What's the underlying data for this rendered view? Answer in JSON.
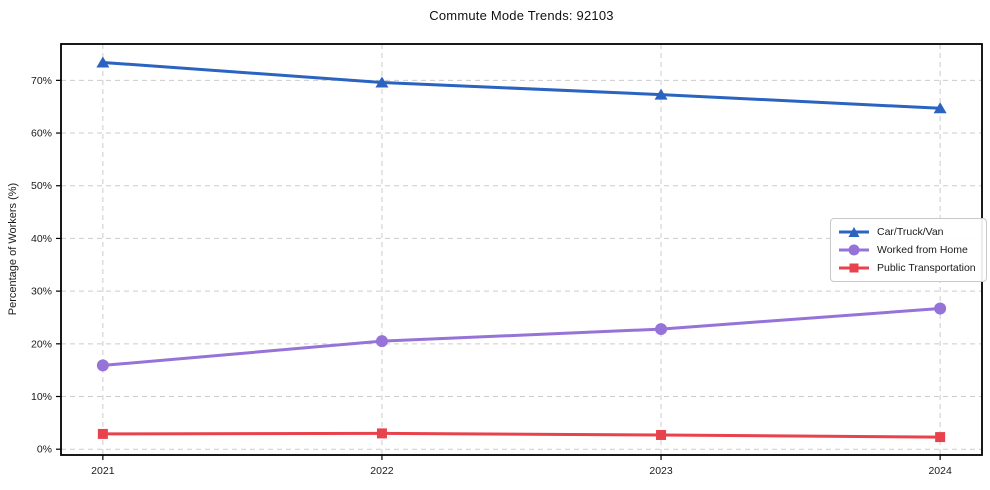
{
  "chart_data": {
    "type": "line",
    "title": "Commute Mode Trends: 92103",
    "xlabel": "",
    "ylabel": "Percentage of Workers (%)",
    "x": [
      2021,
      2022,
      2023,
      2024
    ],
    "x_tick_labels": [
      "2021",
      "2022",
      "2023",
      "2024"
    ],
    "series": [
      {
        "name": "Car/Truck/Van",
        "marker": "triangle",
        "color": "#2a63c0",
        "values": [
          73.4,
          69.6,
          67.3,
          64.7
        ]
      },
      {
        "name": "Worked from Home",
        "marker": "circle",
        "color": "#9673d8",
        "values": [
          15.9,
          20.5,
          22.8,
          26.7
        ]
      },
      {
        "name": "Public Transportation",
        "marker": "square",
        "color": "#e8424d",
        "values": [
          2.9,
          3.0,
          2.7,
          2.3
        ]
      }
    ],
    "xlim": [
      2020.85,
      2024.15
    ],
    "ylim": [
      -1.1,
      76.9
    ],
    "yticks": [
      0,
      10,
      20,
      30,
      40,
      50,
      60,
      70
    ],
    "ytick_suffix": "%",
    "grid": true,
    "grid_style": "dashed",
    "legend_position": "center-right",
    "colors": {
      "grid": "#cccccc",
      "axis_border": "#000000",
      "tick_text": "#1a1a1a",
      "background": "#ffffff"
    }
  }
}
